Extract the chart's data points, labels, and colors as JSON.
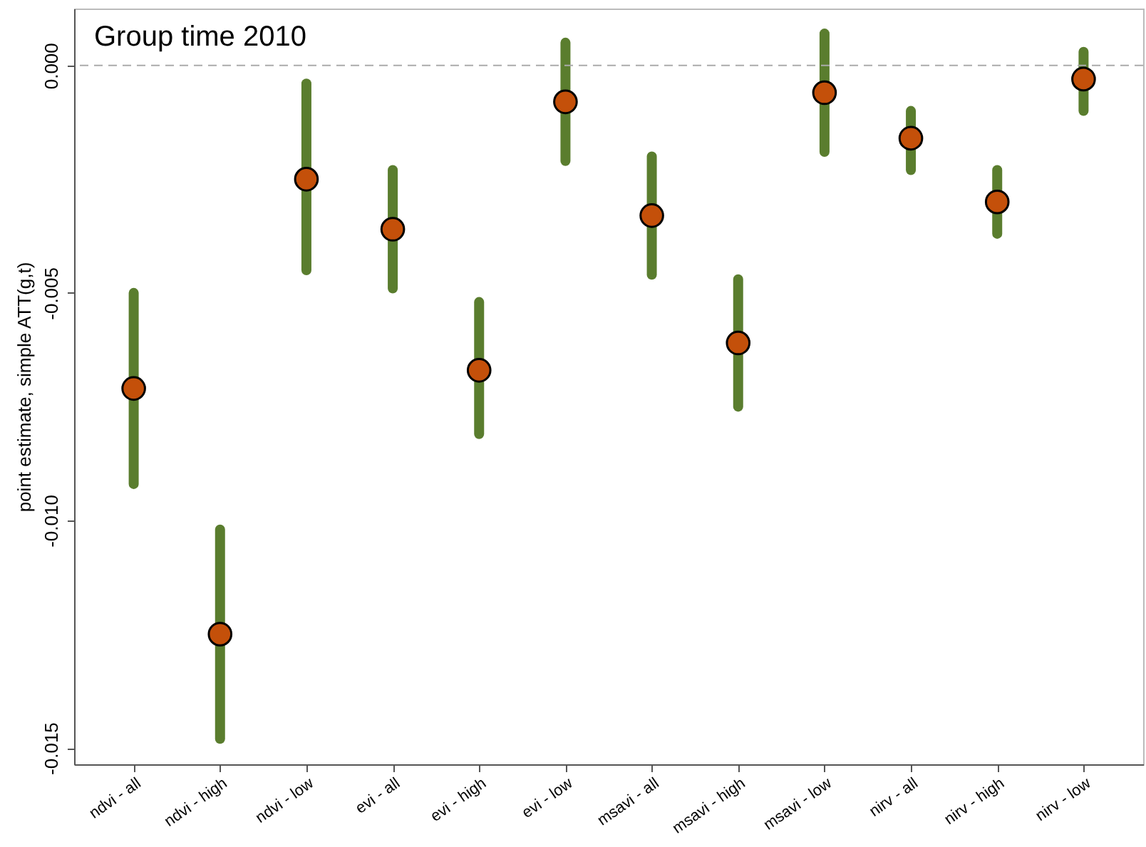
{
  "chart_data": {
    "type": "scatter",
    "title": "Group time 2010",
    "ylabel": "point estimate, simple ATT(g,t)",
    "categories": [
      "ndvi - all",
      "ndvi - high",
      "ndvi - low",
      "evi - all",
      "evi - high",
      "evi - low",
      "msavi - all",
      "msavi - high",
      "msavi - low",
      "nirv - all",
      "nirv - high",
      "nirv - low"
    ],
    "series": [
      {
        "color": "#c4500a",
        "values": [
          -0.0071,
          -0.0125,
          -0.0025,
          -0.0036,
          -0.0067,
          -0.0008,
          -0.0033,
          -0.0061,
          -0.0006,
          -0.0016,
          -0.003,
          -0.0003
        ],
        "errors": [
          [
            -0.0092,
            -0.005
          ],
          [
            -0.0148,
            -0.0102
          ],
          [
            -0.0045,
            -0.0004
          ],
          [
            -0.0049,
            -0.0023
          ],
          [
            -0.0081,
            -0.0052
          ],
          [
            -0.0021,
            0.0005
          ],
          [
            -0.0046,
            -0.002
          ],
          [
            -0.0075,
            -0.0047
          ],
          [
            -0.0019,
            0.0007
          ],
          [
            -0.0023,
            -0.001
          ],
          [
            -0.0037,
            -0.0023
          ],
          [
            -0.001,
            0.0003
          ]
        ]
      }
    ],
    "ylim": [
      -0.01536,
      0.00125
    ],
    "yticks": [
      {
        "value": 0,
        "label": "0.000"
      },
      {
        "value": -0.005,
        "label": "-0.005"
      },
      {
        "value": -0.01,
        "label": "-0.010"
      },
      {
        "value": -0.015,
        "label": "-0.015"
      }
    ],
    "ref_lines": [
      {
        "axis": "y",
        "value": 0,
        "color": "#aaaaaa",
        "line_style": "dashed"
      }
    ],
    "marker": "circle",
    "grid": false
  }
}
